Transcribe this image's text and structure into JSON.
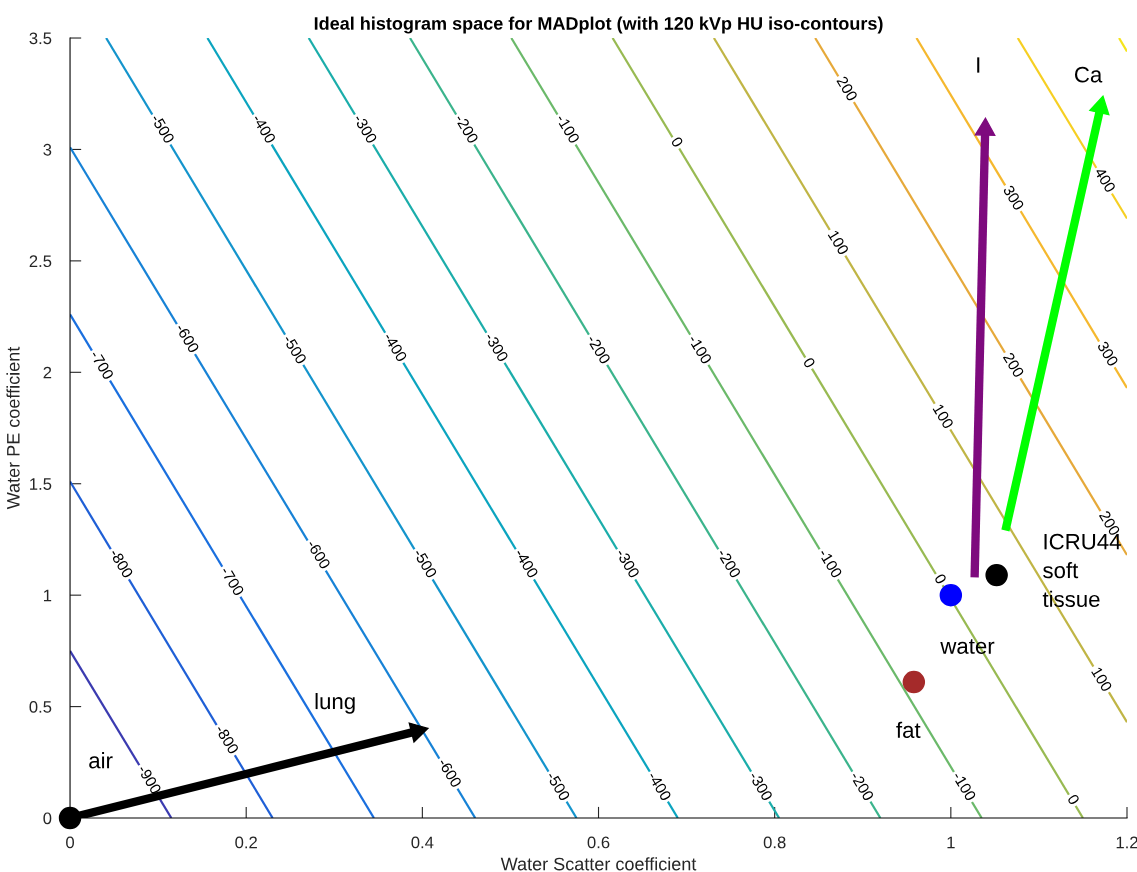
{
  "chart_data": {
    "type": "line",
    "title": "Ideal histogram space for MADplot (with 120 kVp HU iso-contours)",
    "xlabel": "Water Scatter coefficient",
    "ylabel": "Water PE coefficient",
    "xlim": [
      0,
      1.2
    ],
    "ylim": [
      0,
      3.5
    ],
    "xticks": [
      0,
      0.2,
      0.4,
      0.6,
      0.8,
      1,
      1.2
    ],
    "yticks": [
      0,
      0.5,
      1,
      1.5,
      2,
      2.5,
      3,
      3.5
    ],
    "grid": false,
    "series": [
      {
        "type": "line",
        "color": "#3b3bb0",
        "x": [
          0.115,
          0
        ],
        "values": [
          0,
          0.75
        ]
      },
      {
        "type": "line",
        "color": "#1f5fd6",
        "x": [
          0.23,
          0
        ],
        "values": [
          0,
          1.51
        ]
      },
      {
        "type": "line",
        "color": "#1a6fde",
        "x": [
          0.345,
          0
        ],
        "values": [
          0,
          2.26
        ]
      },
      {
        "type": "line",
        "color": "#1782d6",
        "x": [
          0.46,
          0
        ],
        "values": [
          0,
          3.01
        ]
      },
      {
        "type": "line",
        "color": "#1494cc",
        "x": [
          0.575,
          0.041
        ],
        "values": [
          0,
          3.5
        ]
      },
      {
        "type": "line",
        "color": "#0ba4bf",
        "x": [
          0.69,
          0.156
        ],
        "values": [
          0,
          3.5
        ]
      },
      {
        "type": "line",
        "color": "#1badaa",
        "x": [
          0.805,
          0.271
        ],
        "values": [
          0,
          3.5
        ]
      },
      {
        "type": "line",
        "color": "#3bb48c",
        "x": [
          0.92,
          0.386
        ],
        "values": [
          0,
          3.5
        ]
      },
      {
        "type": "line",
        "color": "#6bb96a",
        "x": [
          1.035,
          0.501
        ],
        "values": [
          0,
          3.5
        ]
      },
      {
        "type": "line",
        "color": "#98ba52",
        "x": [
          1.15,
          0.616
        ],
        "values": [
          0,
          3.5
        ]
      },
      {
        "type": "line",
        "color": "#c0b545",
        "x": [
          1.2,
          0.731
        ],
        "values": [
          0.43,
          3.5
        ]
      },
      {
        "type": "line",
        "color": "#e6a93a",
        "x": [
          1.2,
          0.846
        ],
        "values": [
          1.18,
          3.5
        ]
      },
      {
        "type": "line",
        "color": "#f5b82e",
        "x": [
          1.2,
          0.961
        ],
        "values": [
          1.93,
          3.5
        ]
      },
      {
        "type": "line",
        "color": "#f6cf22",
        "x": [
          1.2,
          1.076
        ],
        "values": [
          2.69,
          3.5
        ]
      },
      {
        "type": "line",
        "color": "#f5e41c",
        "x": [
          1.2,
          1.191
        ],
        "values": [
          3.44,
          3.5
        ]
      },
      {
        "type": "line",
        "color": "#000000",
        "marker": "triangle",
        "x": [
          0,
          0.394
        ],
        "values": [
          0,
          0.39
        ]
      },
      {
        "type": "line",
        "color": "#7e0a7e",
        "marker": "triangle",
        "x": [
          1.027,
          1.039
        ],
        "values": [
          1.08,
          3.09
        ]
      },
      {
        "type": "line",
        "color": "#00ff00",
        "marker": "triangle",
        "x": [
          1.062,
          1.17
        ],
        "values": [
          1.29,
          3.19
        ]
      },
      {
        "type": "scatter",
        "marker": "circle",
        "x": [
          0,
          1.0,
          0.958,
          1.052
        ],
        "values": [
          0,
          1.0,
          0.61,
          1.09
        ],
        "colors": [
          "#000000",
          "#0000ff",
          "#a52a2a",
          "#000000"
        ]
      }
    ],
    "annotations": [
      {
        "text": "-500",
        "x": 0.104,
        "y": 3.09
      },
      {
        "text": "-400",
        "x": 0.219,
        "y": 3.09
      },
      {
        "text": "-300",
        "x": 0.334,
        "y": 3.09
      },
      {
        "text": "-200",
        "x": 0.449,
        "y": 3.09
      },
      {
        "text": "-100",
        "x": 0.564,
        "y": 3.09
      },
      {
        "text": "0",
        "x": 0.688,
        "y": 3.03
      },
      {
        "text": "200",
        "x": 0.881,
        "y": 3.27
      },
      {
        "text": "300",
        "x": 1.07,
        "y": 2.78
      },
      {
        "text": "400",
        "x": 1.174,
        "y": 2.86
      },
      {
        "text": "100",
        "x": 0.871,
        "y": 2.58
      },
      {
        "text": "-700",
        "x": 0.035,
        "y": 2.03
      },
      {
        "text": "-600",
        "x": 0.132,
        "y": 2.15
      },
      {
        "text": "-500",
        "x": 0.254,
        "y": 2.1
      },
      {
        "text": "-400",
        "x": 0.368,
        "y": 2.11
      },
      {
        "text": "-300",
        "x": 0.483,
        "y": 2.11
      },
      {
        "text": "-200",
        "x": 0.599,
        "y": 2.1
      },
      {
        "text": "-100",
        "x": 0.714,
        "y": 2.1
      },
      {
        "text": "0",
        "x": 0.838,
        "y": 2.04
      },
      {
        "text": "200",
        "x": 1.07,
        "y": 2.03
      },
      {
        "text": "300",
        "x": 1.177,
        "y": 2.08
      },
      {
        "text": "100",
        "x": 0.99,
        "y": 1.8
      },
      {
        "text": "200",
        "x": 1.179,
        "y": 1.32
      },
      {
        "text": "-800",
        "x": 0.057,
        "y": 1.14
      },
      {
        "text": "-700",
        "x": 0.183,
        "y": 1.06
      },
      {
        "text": "-600",
        "x": 0.281,
        "y": 1.18
      },
      {
        "text": "-500",
        "x": 0.402,
        "y": 1.14
      },
      {
        "text": "-400",
        "x": 0.517,
        "y": 1.14
      },
      {
        "text": "-300",
        "x": 0.632,
        "y": 1.14
      },
      {
        "text": "-200",
        "x": 0.747,
        "y": 1.14
      },
      {
        "text": "-100",
        "x": 0.862,
        "y": 1.14
      },
      {
        "text": "0",
        "x": 0.987,
        "y": 1.07
      },
      {
        "text": "100",
        "x": 1.17,
        "y": 0.62
      },
      {
        "text": "-900",
        "x": 0.089,
        "y": 0.17
      },
      {
        "text": "-800",
        "x": 0.177,
        "y": 0.35
      },
      {
        "text": "-600",
        "x": 0.43,
        "y": 0.2
      },
      {
        "text": "-500",
        "x": 0.553,
        "y": 0.14
      },
      {
        "text": "-400",
        "x": 0.668,
        "y": 0.14
      },
      {
        "text": "-300",
        "x": 0.783,
        "y": 0.14
      },
      {
        "text": "-200",
        "x": 0.898,
        "y": 0.14
      },
      {
        "text": "-100",
        "x": 1.014,
        "y": 0.14
      },
      {
        "text": "0",
        "x": 1.138,
        "y": 0.08
      },
      {
        "text": "air",
        "x": 0,
        "y": 0
      },
      {
        "text": "lung",
        "x": 0.394,
        "y": 0.39
      },
      {
        "text": "I",
        "x": 1.039,
        "y": 3.09
      },
      {
        "text": "Ca",
        "x": 1.17,
        "y": 3.19
      },
      {
        "text": "water",
        "x": 1.0,
        "y": 1.0
      },
      {
        "text": "fat",
        "x": 0.958,
        "y": 0.61
      },
      {
        "text": "ICRU44\nsoft\ntissue",
        "x": 1.052,
        "y": 1.09
      }
    ]
  }
}
